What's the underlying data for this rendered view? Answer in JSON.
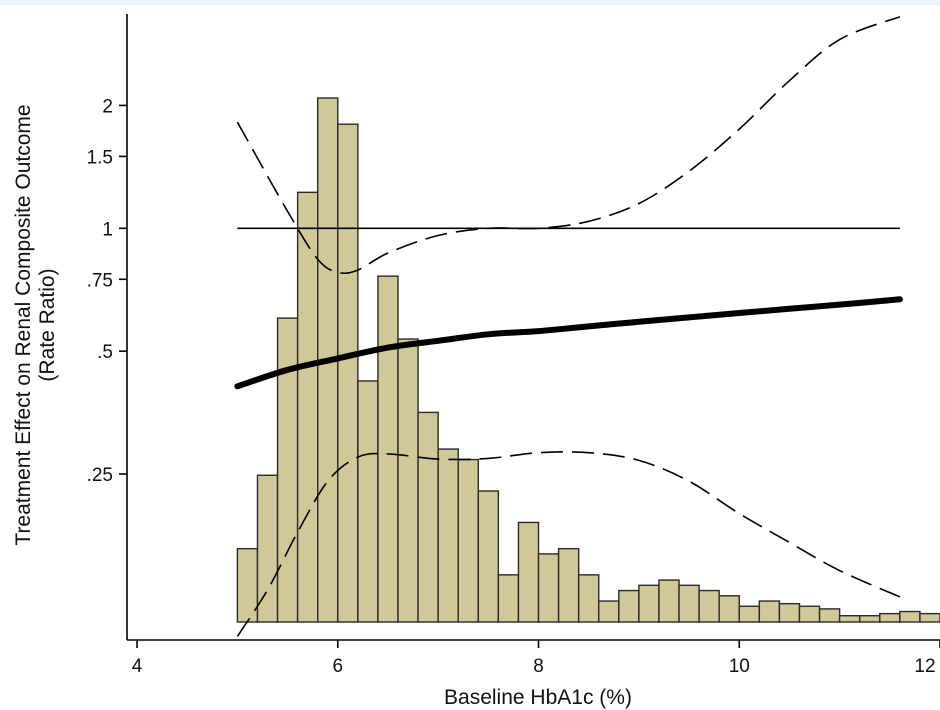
{
  "chart_data": {
    "type": "line",
    "title": "",
    "xlabel": "Baseline HbA1c (%)",
    "ylabel_line1": "Treatment Effect on Renal Composite Outcome",
    "ylabel_line2": "(Rate Ratio)",
    "xlim": [
      3.9,
      12.0
    ],
    "ylim_log": [
      0.098,
      3.35
    ],
    "y_scale": "log",
    "grid": false,
    "legend": "none",
    "xticks": [
      {
        "value": 4,
        "label": "4"
      },
      {
        "value": 6,
        "label": "6"
      },
      {
        "value": 8,
        "label": "8"
      },
      {
        "value": 10,
        "label": "10"
      },
      {
        "value": 12,
        "label": "12"
      }
    ],
    "yticks": [
      {
        "value": 0.25,
        "label": ".25"
      },
      {
        "value": 0.5,
        "label": ".5"
      },
      {
        "value": 0.75,
        "label": ".75"
      },
      {
        "value": 1,
        "label": "1"
      },
      {
        "value": 1.5,
        "label": "1.5"
      },
      {
        "value": 2,
        "label": "2"
      }
    ],
    "reference_line": {
      "y": 1,
      "x_range": [
        5.0,
        11.6
      ]
    },
    "series": [
      {
        "style": "thick-solid",
        "x": [
          5.0,
          5.5,
          6.0,
          6.5,
          7.0,
          7.5,
          8.0,
          8.5,
          9.0,
          9.5,
          10.0,
          10.5,
          11.0,
          11.6
        ],
        "y": [
          0.41,
          0.45,
          0.48,
          0.51,
          0.53,
          0.55,
          0.56,
          0.575,
          0.59,
          0.605,
          0.62,
          0.635,
          0.65,
          0.67
        ]
      },
      {
        "style": "dashed-upper",
        "x": [
          5.0,
          5.5,
          5.8,
          6.0,
          6.2,
          6.5,
          7.0,
          7.5,
          8.0,
          8.5,
          9.0,
          9.5,
          10.0,
          10.5,
          11.0,
          11.6
        ],
        "y": [
          1.82,
          1.1,
          0.84,
          0.78,
          0.79,
          0.87,
          0.96,
          1.0,
          1.0,
          1.04,
          1.15,
          1.38,
          1.75,
          2.3,
          2.9,
          3.3
        ]
      },
      {
        "style": "dashed-lower",
        "x": [
          5.0,
          5.3,
          5.6,
          5.9,
          6.2,
          6.5,
          7.0,
          7.5,
          8.0,
          8.5,
          9.0,
          9.5,
          10.0,
          10.5,
          11.0,
          11.6
        ],
        "y": [
          0.1,
          0.13,
          0.18,
          0.24,
          0.275,
          0.28,
          0.272,
          0.273,
          0.282,
          0.282,
          0.27,
          0.24,
          0.2,
          0.17,
          0.145,
          0.125
        ]
      }
    ],
    "histogram": {
      "bin_width": 0.2,
      "start": 5.0,
      "count_scale_max": 100,
      "bin_heights": [
        14,
        28,
        58,
        82,
        100,
        95,
        46,
        66,
        54,
        40,
        33,
        31,
        25,
        9,
        19,
        13,
        14,
        9,
        4,
        6,
        7,
        8,
        7,
        6,
        5,
        3,
        4,
        3.5,
        3,
        2.5,
        1.2,
        1.2,
        1.6,
        2,
        1.6
      ]
    },
    "colors": {
      "bar_fill": "#d1c898",
      "bar_stroke": "#2a2a2a",
      "line": "#000000"
    }
  }
}
